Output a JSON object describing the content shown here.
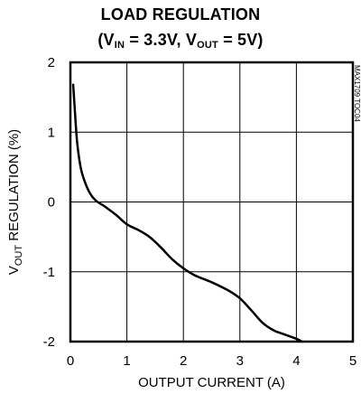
{
  "chart_data": {
    "type": "line",
    "title_line1": "LOAD REGULATION",
    "title_line2": {
      "open": "(V",
      "vin_sub": "IN",
      "mid": " = 3.3V, V",
      "vout_sub": "OUT",
      "close": " = 5V)"
    },
    "xlabel": "OUTPUT CURRENT (A)",
    "ylabel": {
      "v": "V",
      "sub": "OUT",
      "rest": " REGULATION (%)"
    },
    "side_note": "MAX1709 TOC04",
    "xlim": [
      0,
      5
    ],
    "ylim": [
      -2,
      2
    ],
    "x_ticks": [
      "0",
      "1",
      "2",
      "3",
      "4",
      "5"
    ],
    "y_ticks": [
      "2",
      "1",
      "0",
      "-1",
      "-2"
    ],
    "grid": true,
    "series": [
      {
        "x": [
          0.05,
          0.08,
          0.12,
          0.18,
          0.25,
          0.35,
          0.45,
          0.6,
          0.8,
          1.0,
          1.2,
          1.4,
          1.6,
          1.8,
          2.0,
          2.2,
          2.5,
          2.8,
          3.0,
          3.2,
          3.4,
          3.6,
          3.8,
          4.0,
          4.1
        ],
        "y": [
          1.68,
          1.3,
          0.85,
          0.5,
          0.3,
          0.12,
          0.02,
          -0.06,
          -0.18,
          -0.32,
          -0.4,
          -0.5,
          -0.65,
          -0.82,
          -0.95,
          -1.05,
          -1.15,
          -1.27,
          -1.38,
          -1.55,
          -1.73,
          -1.84,
          -1.9,
          -1.96,
          -2.0
        ]
      }
    ]
  }
}
